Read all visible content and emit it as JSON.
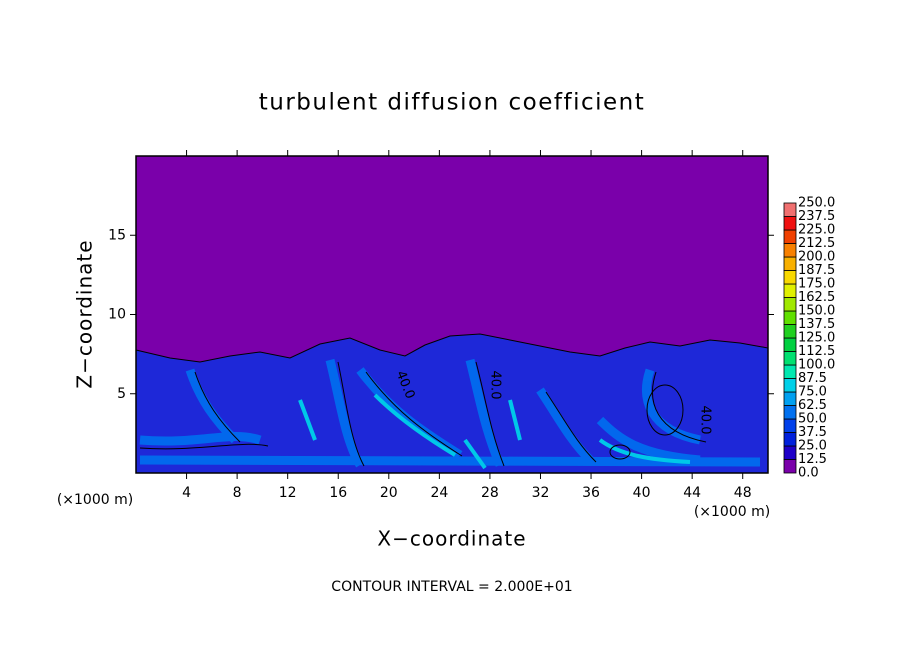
{
  "chart_data": {
    "type": "contour",
    "title": "turbulent diffusion coefficient",
    "xlabel": "X−coordinate",
    "ylabel": "Z−coordinate",
    "x_unit": "(×1000 m)",
    "x_unit_right": "(×1000 m)",
    "footer": "CONTOUR INTERVAL = 2.000E+01",
    "contour_labels": [
      "40.0",
      "40.0",
      "40.0"
    ],
    "xlim": [
      0,
      50
    ],
    "xticks": [
      4,
      8,
      12,
      16,
      20,
      24,
      28,
      32,
      36,
      40,
      44,
      48
    ],
    "ylim": [
      0,
      20
    ],
    "yticks": [
      5,
      10,
      15
    ],
    "colorbar": {
      "ticks": [
        {
          "value": 0,
          "label": "0.0"
        },
        {
          "value": 12.5,
          "label": "12.5"
        },
        {
          "value": 25,
          "label": "25.0"
        },
        {
          "value": 37.5,
          "label": "37.5"
        },
        {
          "value": 50,
          "label": "50.0"
        },
        {
          "value": 62.5,
          "label": "62.5"
        },
        {
          "value": 75,
          "label": "75.0"
        },
        {
          "value": 87.5,
          "label": "87.5"
        },
        {
          "value": 100,
          "label": "100.0"
        },
        {
          "value": 112.5,
          "label": "112.5"
        },
        {
          "value": 125,
          "label": "125.0"
        },
        {
          "value": 137.5,
          "label": "137.5"
        },
        {
          "value": 150,
          "label": "150.0"
        },
        {
          "value": 162.5,
          "label": "162.5"
        },
        {
          "value": 175,
          "label": "175.0"
        },
        {
          "value": 187.5,
          "label": "187.5"
        },
        {
          "value": 200,
          "label": "200.0"
        },
        {
          "value": 212.5,
          "label": "212.5"
        },
        {
          "value": 225,
          "label": "225.0"
        },
        {
          "value": 237.5,
          "label": "237.5"
        },
        {
          "value": 250,
          "label": "250.0"
        }
      ],
      "colors": [
        "#7a00aa",
        "#1e00c8",
        "#0020dc",
        "#0040ea",
        "#0070f0",
        "#00a0f0",
        "#00d0e8",
        "#00e8b0",
        "#00e070",
        "#00d040",
        "#20d020",
        "#60e000",
        "#a0e800",
        "#e0f000",
        "#f8d800",
        "#f8b000",
        "#f88000",
        "#f04000",
        "#f01010",
        "#f07070"
      ]
    }
  }
}
